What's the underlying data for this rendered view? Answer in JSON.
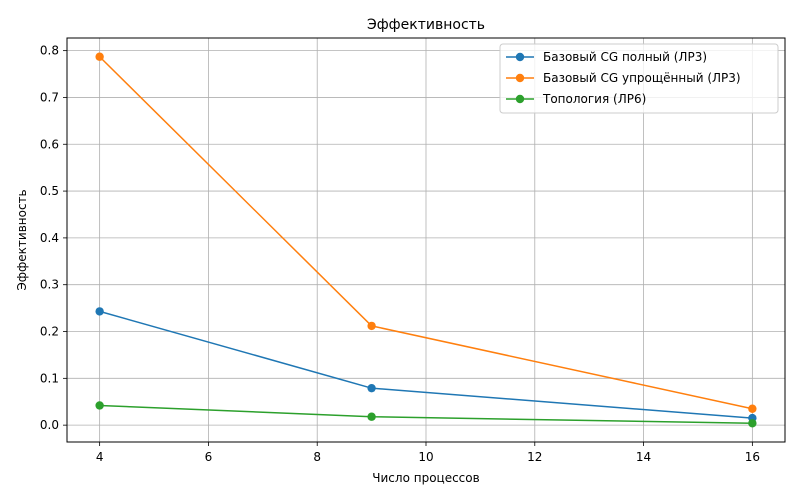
{
  "chart_data": {
    "type": "line",
    "title": "Эффективность",
    "xlabel": "Число процессов",
    "ylabel": "Эффективность",
    "x": [
      4,
      9,
      16
    ],
    "xlim": [
      3.4,
      16.6
    ],
    "ylim": [
      -0.036,
      0.827
    ],
    "xticks": [
      4,
      6,
      8,
      10,
      12,
      14,
      16
    ],
    "yticks": [
      0.0,
      0.1,
      0.2,
      0.3,
      0.4,
      0.5,
      0.6,
      0.7,
      0.8
    ],
    "ytick_labels": [
      "0.0",
      "0.1",
      "0.2",
      "0.3",
      "0.4",
      "0.5",
      "0.6",
      "0.7",
      "0.8"
    ],
    "grid": true,
    "legend_position": "top-right",
    "series": [
      {
        "name": "Базовый CG полный (ЛР3)",
        "values": [
          0.243,
          0.079,
          0.015
        ],
        "color": "#1f77b4"
      },
      {
        "name": "Базовый CG упрощённый (ЛР3)",
        "values": [
          0.787,
          0.212,
          0.035
        ],
        "color": "#ff7f0e"
      },
      {
        "name": "Топология (ЛР6)",
        "values": [
          0.042,
          0.018,
          0.004
        ],
        "color": "#2ca02c"
      }
    ]
  }
}
